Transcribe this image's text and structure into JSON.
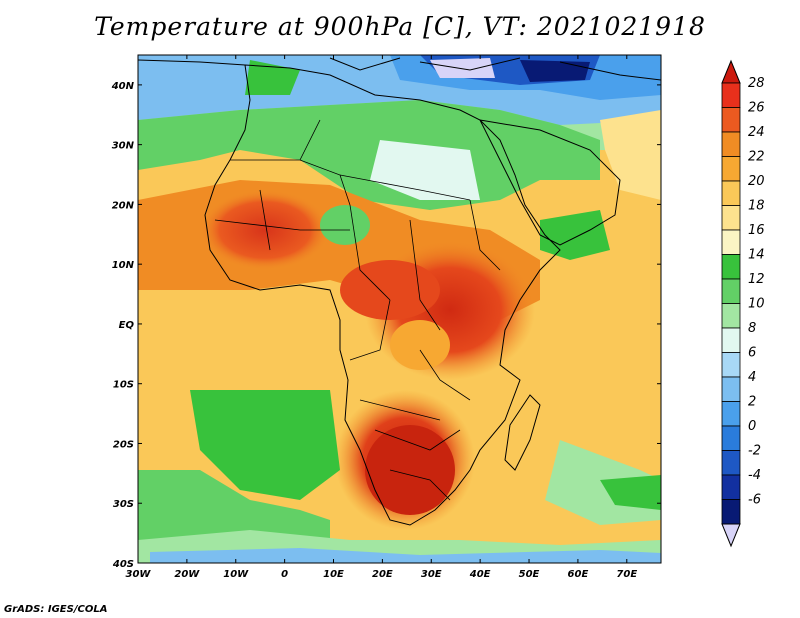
{
  "title": "Temperature at 900hPa [C], VT: 2021021918",
  "credit": "GrADS: IGES/COLA",
  "map": {
    "lon_range": [
      -30,
      77
    ],
    "lat_range": [
      -40,
      45
    ],
    "x_ticks": [
      {
        "lon": -30,
        "label": "30W"
      },
      {
        "lon": -20,
        "label": "20W"
      },
      {
        "lon": -10,
        "label": "10W"
      },
      {
        "lon": 0,
        "label": "0"
      },
      {
        "lon": 10,
        "label": "10E"
      },
      {
        "lon": 20,
        "label": "20E"
      },
      {
        "lon": 30,
        "label": "30E"
      },
      {
        "lon": 40,
        "label": "40E"
      },
      {
        "lon": 50,
        "label": "50E"
      },
      {
        "lon": 60,
        "label": "60E"
      },
      {
        "lon": 70,
        "label": "70E"
      }
    ],
    "y_ticks": [
      {
        "lat": 40,
        "label": "40N"
      },
      {
        "lat": 30,
        "label": "30N"
      },
      {
        "lat": 20,
        "label": "20N"
      },
      {
        "lat": 10,
        "label": "10N"
      },
      {
        "lat": 0,
        "label": "EQ"
      },
      {
        "lat": -10,
        "label": "10S"
      },
      {
        "lat": -20,
        "label": "20S"
      },
      {
        "lat": -30,
        "label": "30S"
      },
      {
        "lat": -40,
        "label": "40S"
      }
    ]
  },
  "colorbar": {
    "labels": [
      "28",
      "26",
      "24",
      "22",
      "20",
      "18",
      "16",
      "14",
      "12",
      "10",
      "8",
      "6",
      "4",
      "2",
      "0",
      "-2",
      "-4",
      "-6"
    ],
    "colors": [
      "#e8301c",
      "#ec5a20",
      "#f08c24",
      "#f7a832",
      "#fac858",
      "#fde28e",
      "#fbf5c4",
      "#38c23c",
      "#62d066",
      "#a2e6a2",
      "#e2f8f0",
      "#a8d8f6",
      "#7cbef0",
      "#4aa0ec",
      "#2a7cdc",
      "#1e58c4",
      "#1230a0",
      "#081a74"
    ],
    "top_cap": "#cc1a0e",
    "bottom_cap": "#d8d4f8"
  }
}
